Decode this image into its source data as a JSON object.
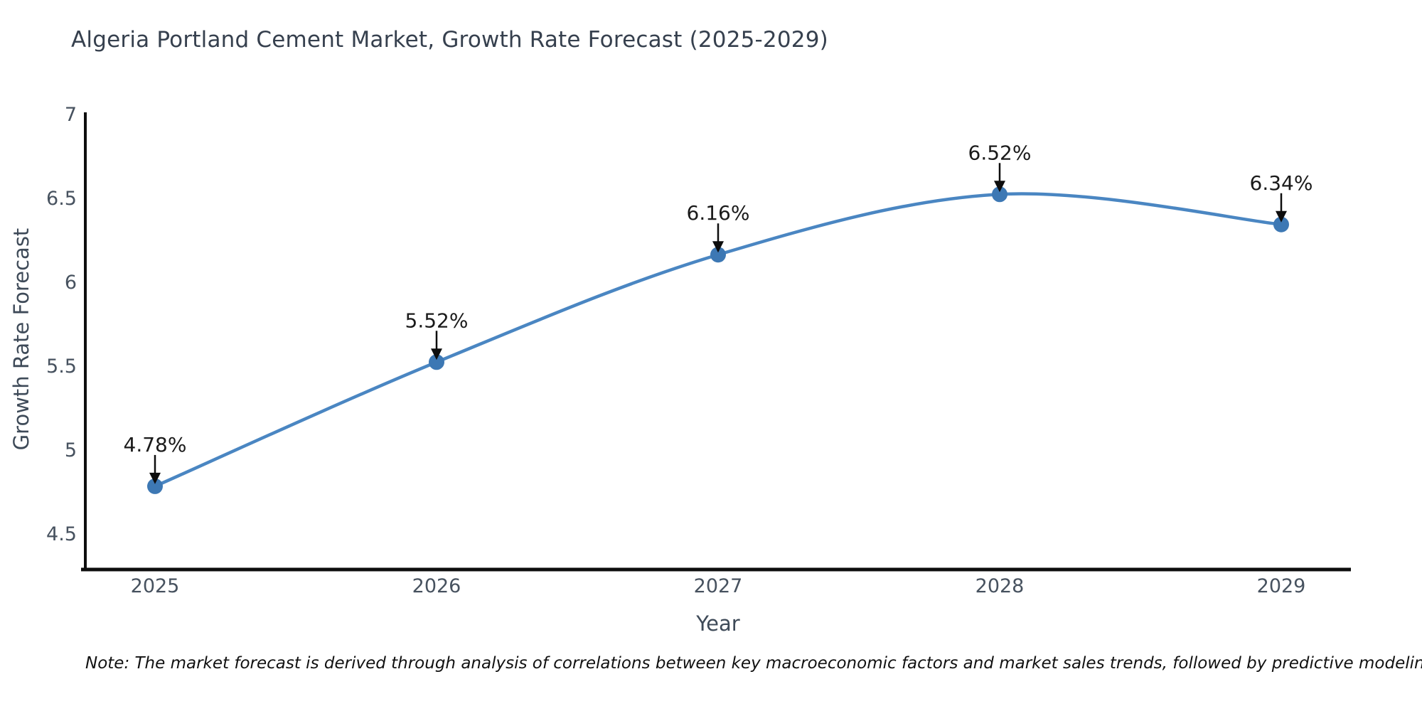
{
  "title": "Algeria Portland Cement Market, Growth Rate Forecast (2025-2029)",
  "note": "Note: The market forecast is derived through analysis of correlations between key macroeconomic factors and market sales trends, followed by predictive modeling to project future sales",
  "chart_data": {
    "type": "line",
    "title": "Algeria Portland Cement Market, Growth Rate Forecast (2025-2029)",
    "xlabel": "Year",
    "ylabel": "Growth Rate Forecast",
    "categories": [
      "2025",
      "2026",
      "2027",
      "2028",
      "2029"
    ],
    "values": [
      4.78,
      5.52,
      6.16,
      6.52,
      6.34
    ],
    "point_labels": [
      "4.78%",
      "5.52%",
      "6.16%",
      "6.52%",
      "6.34%"
    ],
    "y_ticks": [
      7,
      6.5,
      6,
      5.5,
      5,
      4.5
    ],
    "ylim": [
      4.3,
      7.0
    ],
    "grid": false,
    "legend_position": "none",
    "line_smoothing": true,
    "colors": {
      "line": "#4a86c2",
      "marker": "#3d78b4",
      "axis": "#0d0d0d",
      "annotation": "#0d0d0d",
      "tick_text": "#47525f",
      "title_text": "#36404e"
    }
  }
}
